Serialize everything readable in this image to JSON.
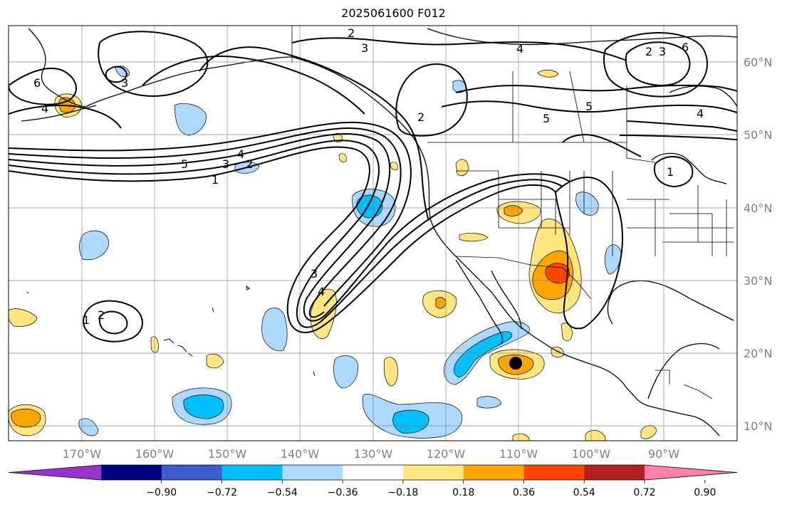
{
  "title": "2025061600 F012",
  "map": {
    "lat_labels": [
      "60°N",
      "50°N",
      "40°N",
      "30°N",
      "20°N",
      "10°N"
    ],
    "lon_labels": [
      "170°W",
      "160°W",
      "150°W",
      "140°W",
      "130°W",
      "120°W",
      "110°W",
      "100°W",
      "90°W"
    ],
    "contour_labels": [
      "2",
      "3",
      "6",
      "4",
      "3",
      "5",
      "4",
      "2",
      "3",
      "6",
      "5",
      "4",
      "5",
      "3",
      "2",
      "4",
      "1",
      "1",
      "3",
      "4",
      "2",
      "1",
      "2"
    ],
    "marker": "black-dot"
  },
  "colorbar": {
    "colors": [
      "#9933cc",
      "#000080",
      "#3a5fcd",
      "#00bfff",
      "#add8ff",
      "#ffffff",
      "#ffe680",
      "#ffa500",
      "#ff4500",
      "#b22222",
      "#ff82ab"
    ],
    "tick_labels": [
      "−0.90",
      "−0.72",
      "−0.54",
      "−0.36",
      "−0.18",
      "0.18",
      "0.36",
      "0.54",
      "0.72",
      "0.90"
    ]
  }
}
